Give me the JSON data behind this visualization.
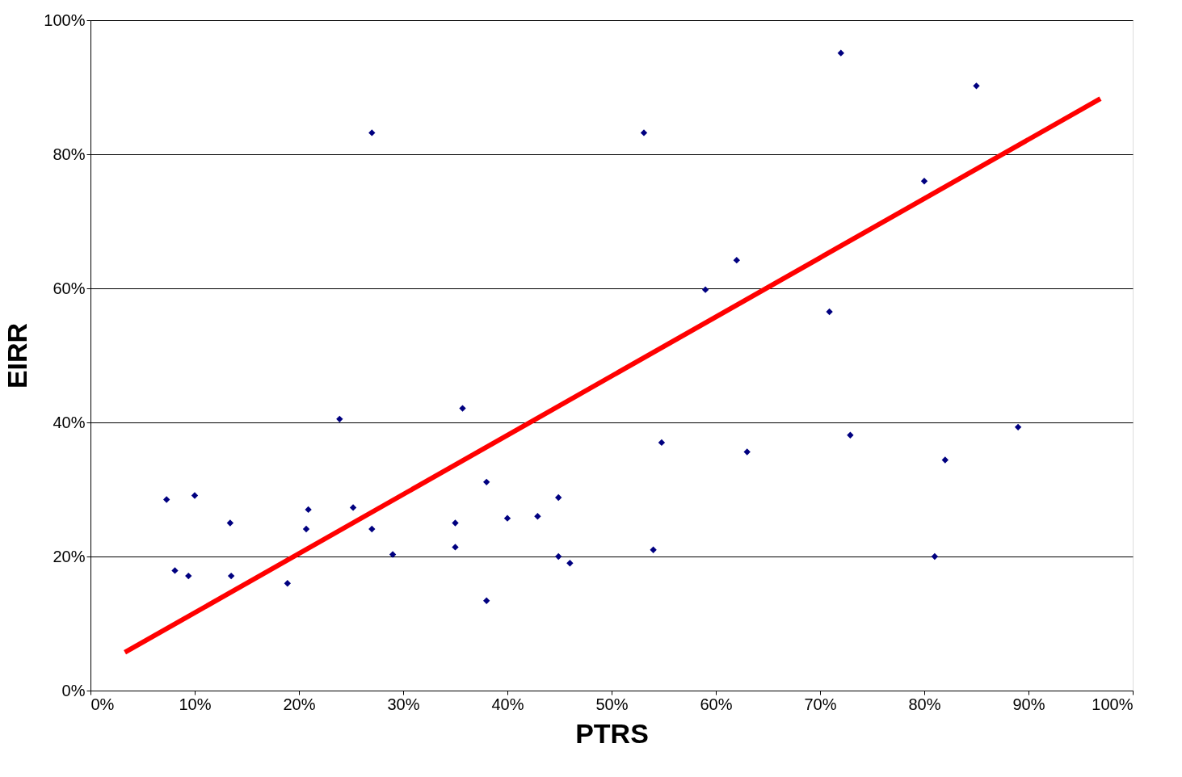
{
  "chart_data": {
    "type": "scatter",
    "xlabel": "PTRS",
    "ylabel": "EIRR",
    "xlim": [
      0,
      100
    ],
    "ylim": [
      0,
      100
    ],
    "xticks": [
      {
        "value": 0,
        "label": "0%"
      },
      {
        "value": 10,
        "label": "10%"
      },
      {
        "value": 20,
        "label": "20%"
      },
      {
        "value": 30,
        "label": "30%"
      },
      {
        "value": 40,
        "label": "40%"
      },
      {
        "value": 50,
        "label": "50%"
      },
      {
        "value": 60,
        "label": "60%"
      },
      {
        "value": 70,
        "label": "70%"
      },
      {
        "value": 80,
        "label": "80%"
      },
      {
        "value": 90,
        "label": "90%"
      },
      {
        "value": 100,
        "label": "100%"
      }
    ],
    "yticks": [
      {
        "value": 0,
        "label": "0%"
      },
      {
        "value": 20,
        "label": "20%"
      },
      {
        "value": 40,
        "label": "40%"
      },
      {
        "value": 60,
        "label": "60%"
      },
      {
        "value": 80,
        "label": "80%"
      },
      {
        "value": 100,
        "label": "100%"
      }
    ],
    "grid": "y",
    "series": [
      {
        "marker": "diamond",
        "color": "#000080",
        "x": [
          7.3,
          8.1,
          9.4,
          10.0,
          13.4,
          13.5,
          18.9,
          20.7,
          20.9,
          23.9,
          25.2,
          27.0,
          27.0,
          29.0,
          35.0,
          35.0,
          35.7,
          38.0,
          38.0,
          40.0,
          42.9,
          44.9,
          44.9,
          46.0,
          53.1,
          54.0,
          54.8,
          59.0,
          62.0,
          63.0,
          70.9,
          72.0,
          72.9,
          80.0,
          81.0,
          82.0,
          85.0,
          89.0
        ],
        "values": [
          28.5,
          17.9,
          17.1,
          29.1,
          25.0,
          17.1,
          16.0,
          24.1,
          27.0,
          40.5,
          27.3,
          83.2,
          24.1,
          20.3,
          25.0,
          21.4,
          42.1,
          31.1,
          13.4,
          25.7,
          26.0,
          28.8,
          20.0,
          19.0,
          83.2,
          21.0,
          37.0,
          59.8,
          64.2,
          35.6,
          56.5,
          95.1,
          38.1,
          76.0,
          20.0,
          34.4,
          90.2,
          39.3
        ]
      },
      {
        "type": "line",
        "marker": "none",
        "color": "#ff0000",
        "line_style": "solid",
        "x": [
          3.3,
          96.9
        ],
        "values": [
          5.7,
          88.3
        ]
      }
    ]
  }
}
